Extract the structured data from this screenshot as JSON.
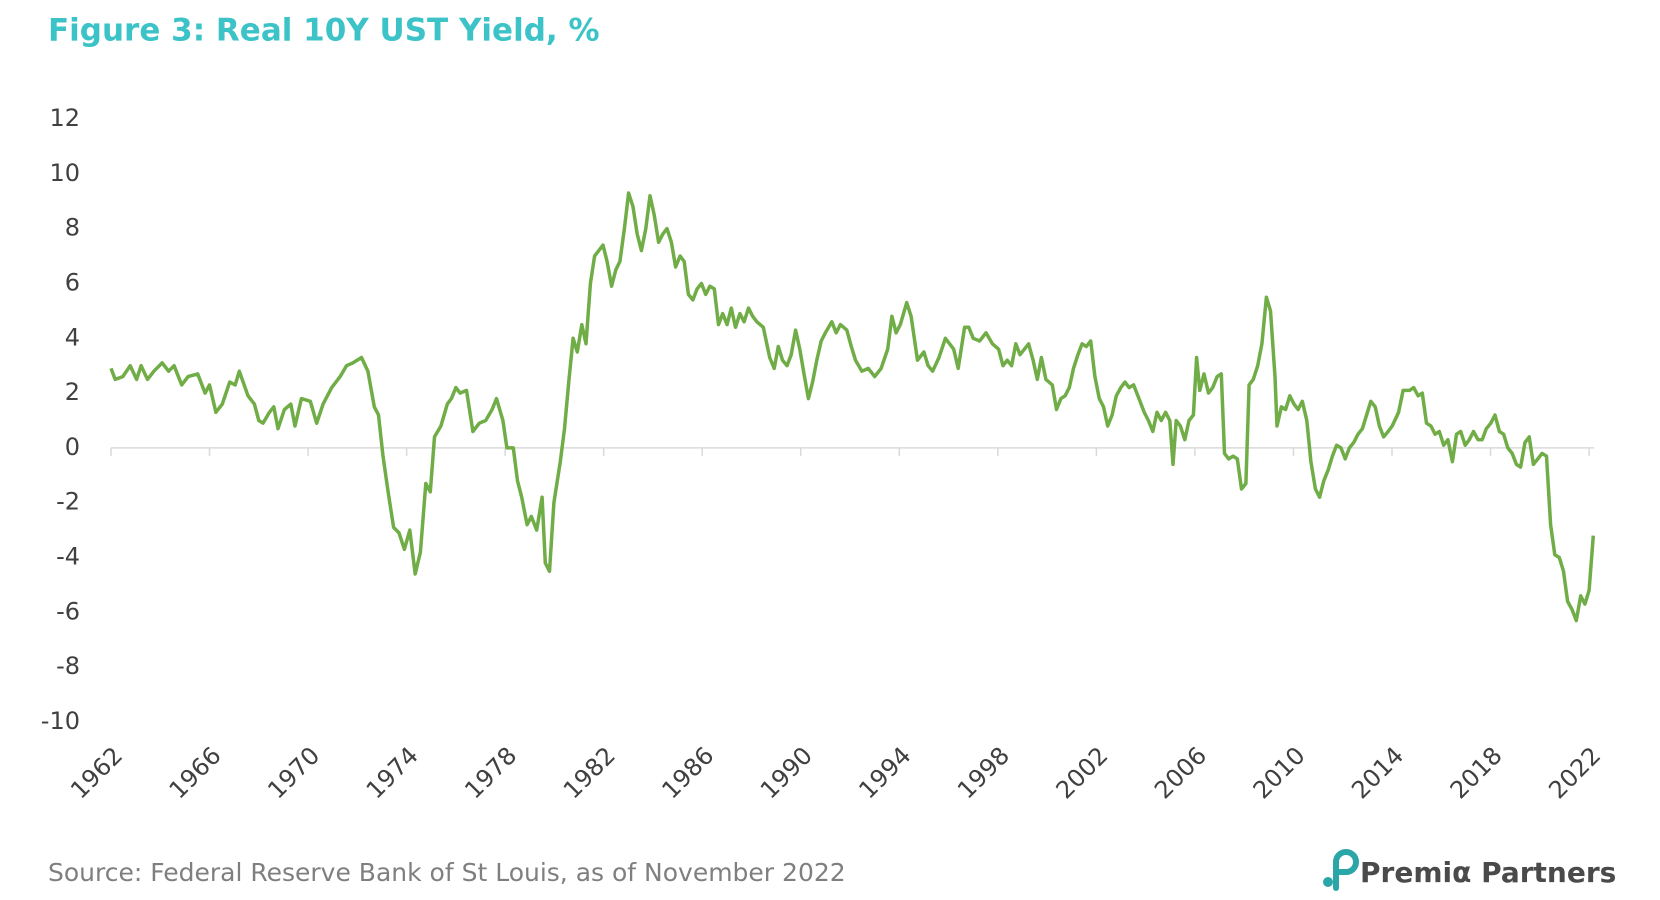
{
  "chart_data": {
    "type": "line",
    "title": "Figure 3: Real 10Y UST Yield, %",
    "source": "Source: Federal Reserve Bank of St Louis, as of November 2022",
    "logo": "Premiα Partners",
    "color": "#70ad47",
    "xlim": [
      1962,
      2022.2
    ],
    "xticks": [
      1962,
      1966,
      1970,
      1974,
      1978,
      1982,
      1986,
      1990,
      1994,
      1998,
      2002,
      2006,
      2010,
      2014,
      2018,
      2022
    ],
    "ylim": [
      -10,
      12
    ],
    "yticks": [
      -10,
      -8,
      -6,
      -4,
      -2,
      0,
      2,
      4,
      6,
      8,
      10,
      12
    ],
    "x": [
      1962.0,
      1962.17,
      1962.48,
      1962.78,
      1963.04,
      1963.22,
      1963.48,
      1963.74,
      1964.08,
      1964.34,
      1964.56,
      1964.87,
      1965.13,
      1965.52,
      1965.82,
      1966.0,
      1966.26,
      1966.52,
      1966.82,
      1967.04,
      1967.21,
      1967.56,
      1967.82,
      1968.0,
      1968.17,
      1968.43,
      1968.61,
      1968.78,
      1969.04,
      1969.3,
      1969.47,
      1969.73,
      1970.09,
      1970.35,
      1970.61,
      1970.96,
      1971.3,
      1971.56,
      1971.82,
      1972.17,
      1972.43,
      1972.69,
      1972.86,
      1973.04,
      1973.25,
      1973.47,
      1973.69,
      1973.91,
      1974.13,
      1974.35,
      1974.56,
      1974.78,
      1974.96,
      1975.13,
      1975.39,
      1975.65,
      1975.82,
      1976.0,
      1976.17,
      1976.43,
      1976.69,
      1976.95,
      1977.21,
      1977.47,
      1977.65,
      1977.91,
      1978.07,
      1978.33,
      1978.5,
      1978.67,
      1978.89,
      1979.06,
      1979.28,
      1979.5,
      1979.63,
      1979.8,
      1979.98,
      1980.24,
      1980.41,
      1980.59,
      1980.76,
      1980.93,
      1981.11,
      1981.28,
      1981.46,
      1981.63,
      1981.8,
      1981.97,
      1982.14,
      1982.32,
      1982.49,
      1982.66,
      1982.84,
      1983.01,
      1983.19,
      1983.36,
      1983.53,
      1983.71,
      1983.88,
      1984.05,
      1984.23,
      1984.4,
      1984.57,
      1984.75,
      1984.92,
      1985.1,
      1985.27,
      1985.44,
      1985.62,
      1985.79,
      1985.97,
      1986.14,
      1986.31,
      1986.49,
      1986.66,
      1986.83,
      1987.01,
      1987.18,
      1987.35,
      1987.53,
      1987.7,
      1987.88,
      1988.05,
      1988.22,
      1988.48,
      1988.74,
      1988.92,
      1989.09,
      1989.26,
      1989.44,
      1989.61,
      1989.79,
      1989.96,
      1990.13,
      1990.31,
      1990.48,
      1990.65,
      1990.83,
      1991.0,
      1991.26,
      1991.44,
      1991.61,
      1991.87,
      1992.05,
      1992.22,
      1992.48,
      1992.74,
      1993.0,
      1993.26,
      1993.53,
      1993.7,
      1993.87,
      1994.04,
      1994.3,
      1994.48,
      1994.74,
      1995.0,
      1995.17,
      1995.35,
      1995.61,
      1995.87,
      1996.04,
      1996.21,
      1996.39,
      1996.65,
      1996.82,
      1997.0,
      1997.26,
      1997.52,
      1997.78,
      1998.03,
      1998.21,
      1998.38,
      1998.56,
      1998.73,
      1998.9,
      1999.08,
      1999.25,
      1999.43,
      1999.6,
      1999.77,
      1999.95,
      2000.21,
      2000.38,
      2000.56,
      2000.73,
      2000.9,
      2001.07,
      2001.25,
      2001.42,
      2001.59,
      2001.77,
      2001.94,
      2002.12,
      2002.29,
      2002.46,
      2002.64,
      2002.81,
      2002.99,
      2003.16,
      2003.33,
      2003.51,
      2003.77,
      2003.94,
      2004.11,
      2004.29,
      2004.46,
      2004.63,
      2004.81,
      2004.98,
      2005.11,
      2005.24,
      2005.41,
      2005.59,
      2005.76,
      2005.94,
      2006.07,
      2006.2,
      2006.37,
      2006.55,
      2006.72,
      2006.9,
      2007.07,
      2007.2,
      2007.37,
      2007.55,
      2007.72,
      2007.89,
      2008.07,
      2008.2,
      2008.37,
      2008.55,
      2008.72,
      2008.9,
      2009.07,
      2009.25,
      2009.33,
      2009.51,
      2009.68,
      2009.85,
      2010.02,
      2010.19,
      2010.36,
      2010.54,
      2010.71,
      2010.89,
      2011.06,
      2011.23,
      2011.41,
      2011.58,
      2011.75,
      2011.93,
      2012.1,
      2012.27,
      2012.45,
      2012.62,
      2012.8,
      2012.97,
      2013.14,
      2013.32,
      2013.49,
      2013.66,
      2013.84,
      2014.01,
      2014.27,
      2014.45,
      2014.71,
      2014.88,
      2015.06,
      2015.23,
      2015.4,
      2015.58,
      2015.75,
      2015.92,
      2016.1,
      2016.27,
      2016.45,
      2016.62,
      2016.79,
      2016.97,
      2017.14,
      2017.31,
      2017.49,
      2017.66,
      2017.83,
      2018.01,
      2018.18,
      2018.36,
      2018.53,
      2018.7,
      2018.88,
      2019.05,
      2019.22,
      2019.4,
      2019.57,
      2019.74,
      2019.92,
      2020.09,
      2020.27,
      2020.44,
      2020.61,
      2020.79,
      2020.96,
      2021.13,
      2021.31,
      2021.48,
      2021.66,
      2021.83,
      2022.0,
      2022.17
    ],
    "values": [
      2.9,
      2.5,
      2.6,
      3.0,
      2.5,
      3.0,
      2.5,
      2.8,
      3.1,
      2.8,
      3.0,
      2.3,
      2.6,
      2.7,
      2.0,
      2.3,
      1.3,
      1.6,
      2.4,
      2.3,
      2.8,
      1.9,
      1.6,
      1.0,
      0.9,
      1.3,
      1.5,
      0.7,
      1.4,
      1.6,
      0.8,
      1.8,
      1.7,
      0.9,
      1.6,
      2.2,
      2.6,
      3.0,
      3.1,
      3.3,
      2.8,
      1.5,
      1.2,
      -0.3,
      -1.6,
      -2.9,
      -3.1,
      -3.7,
      -3.0,
      -4.6,
      -3.8,
      -1.3,
      -1.6,
      0.4,
      0.8,
      1.6,
      1.8,
      2.2,
      2.0,
      2.1,
      0.6,
      0.9,
      1.0,
      1.4,
      1.8,
      1.0,
      0.0,
      0.0,
      -1.2,
      -1.8,
      -2.8,
      -2.5,
      -3.0,
      -1.8,
      -4.2,
      -4.5,
      -2.0,
      -0.5,
      0.7,
      2.5,
      4.0,
      3.5,
      4.5,
      3.8,
      6.0,
      7.0,
      7.2,
      7.4,
      6.8,
      5.9,
      6.5,
      6.8,
      8.0,
      9.3,
      8.8,
      7.8,
      7.2,
      8.0,
      9.2,
      8.5,
      7.5,
      7.8,
      8.0,
      7.5,
      6.6,
      7.0,
      6.8,
      5.6,
      5.4,
      5.8,
      6.0,
      5.6,
      5.9,
      5.8,
      4.5,
      4.9,
      4.5,
      5.1,
      4.4,
      4.9,
      4.6,
      5.1,
      4.8,
      4.6,
      4.4,
      3.3,
      2.9,
      3.7,
      3.2,
      3.0,
      3.4,
      4.3,
      3.6,
      2.7,
      1.8,
      2.4,
      3.2,
      3.9,
      4.2,
      4.6,
      4.2,
      4.5,
      4.3,
      3.7,
      3.2,
      2.8,
      2.9,
      2.6,
      2.9,
      3.6,
      4.8,
      4.2,
      4.5,
      5.3,
      4.8,
      3.2,
      3.5,
      3.0,
      2.8,
      3.3,
      4.0,
      3.8,
      3.6,
      2.9,
      4.4,
      4.4,
      4.0,
      3.9,
      4.2,
      3.8,
      3.6,
      3.0,
      3.2,
      3.0,
      3.8,
      3.4,
      3.6,
      3.8,
      3.2,
      2.5,
      3.3,
      2.5,
      2.3,
      1.4,
      1.8,
      1.9,
      2.2,
      2.9,
      3.4,
      3.8,
      3.7,
      3.9,
      2.6,
      1.8,
      1.5,
      0.8,
      1.2,
      1.9,
      2.2,
      2.4,
      2.2,
      2.3,
      1.7,
      1.3,
      1.0,
      0.6,
      1.3,
      1.0,
      1.3,
      1.0,
      -0.6,
      1.0,
      0.8,
      0.3,
      1.0,
      1.2,
      3.3,
      2.1,
      2.7,
      2.0,
      2.2,
      2.6,
      2.7,
      -0.2,
      -0.4,
      -0.3,
      -0.4,
      -1.5,
      -1.3,
      2.3,
      2.5,
      3.0,
      3.8,
      5.5,
      5.0,
      2.6,
      0.8,
      1.5,
      1.4,
      1.9,
      1.6,
      1.4,
      1.7,
      1.0,
      -0.5,
      -1.5,
      -1.8,
      -1.2,
      -0.8,
      -0.3,
      0.1,
      0.0,
      -0.4,
      0.0,
      0.2,
      0.5,
      0.7,
      1.2,
      1.7,
      1.5,
      0.8,
      0.4,
      0.6,
      0.8,
      1.3,
      2.1,
      2.1,
      2.2,
      1.9,
      2.0,
      0.9,
      0.8,
      0.5,
      0.6,
      0.1,
      0.3,
      -0.5,
      0.5,
      0.6,
      0.1,
      0.3,
      0.6,
      0.3,
      0.3,
      0.7,
      0.9,
      1.2,
      0.6,
      0.5,
      0.0,
      -0.2,
      -0.6,
      -0.7,
      0.2,
      0.4,
      -0.6,
      -0.4,
      -0.2,
      -0.3,
      -2.8,
      -3.9,
      -4.0,
      -4.5,
      -5.6,
      -5.9,
      -6.3,
      -5.4,
      -5.7,
      -5.2,
      -3.2
    ]
  }
}
